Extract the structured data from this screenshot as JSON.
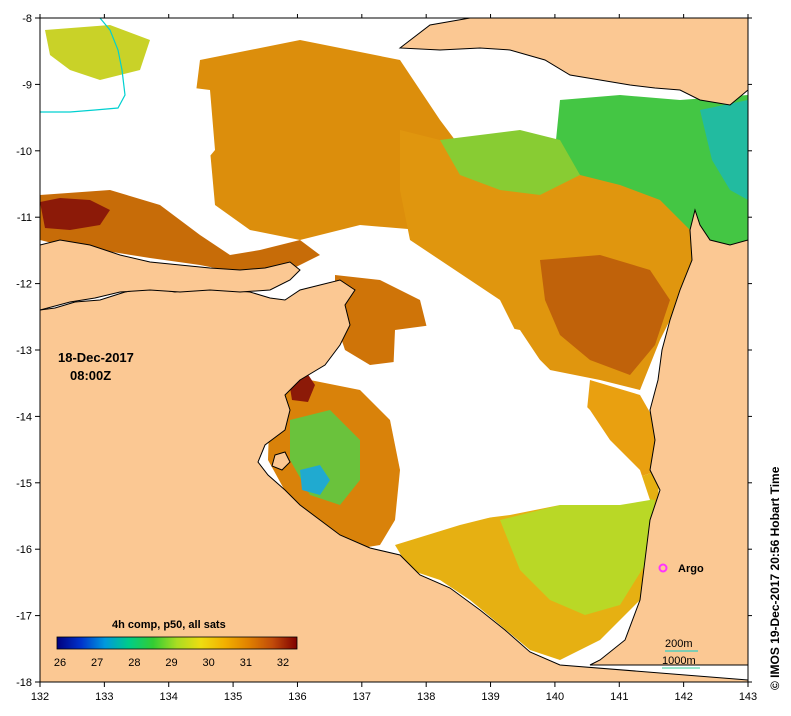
{
  "map": {
    "date": "18-Dec-2017",
    "time": "08:00Z",
    "credit": "© IMOS 19-Dec-2017 20:56 Hobart Time",
    "product": "4h comp, p50, all sats",
    "x_ticks": [
      "132",
      "133",
      "134",
      "135",
      "136",
      "137",
      "138",
      "139",
      "140",
      "141",
      "142",
      "143"
    ],
    "y_ticks": [
      "-8",
      "-9",
      "-10",
      "-11",
      "-12",
      "-13",
      "-14",
      "-15",
      "-16",
      "-17",
      "-18"
    ],
    "colorbar_ticks": [
      "26",
      "27",
      "28",
      "29",
      "30",
      "31",
      "32"
    ],
    "colorbar_stops": [
      "#00007f",
      "#0033cc",
      "#0099dd",
      "#00cc88",
      "#33cc33",
      "#aadd22",
      "#eedd11",
      "#f2b000",
      "#e08000",
      "#c04a0a",
      "#7f0000"
    ],
    "contours": [
      "200m",
      "1000m"
    ],
    "argo_label": "Argo",
    "colors": {
      "land": "#fbc893",
      "ocean_nodata": "#ffffff",
      "contour_200m": "#00d0d0",
      "contour_1000m": "#33cc99",
      "argo": "#ff33ff"
    }
  }
}
